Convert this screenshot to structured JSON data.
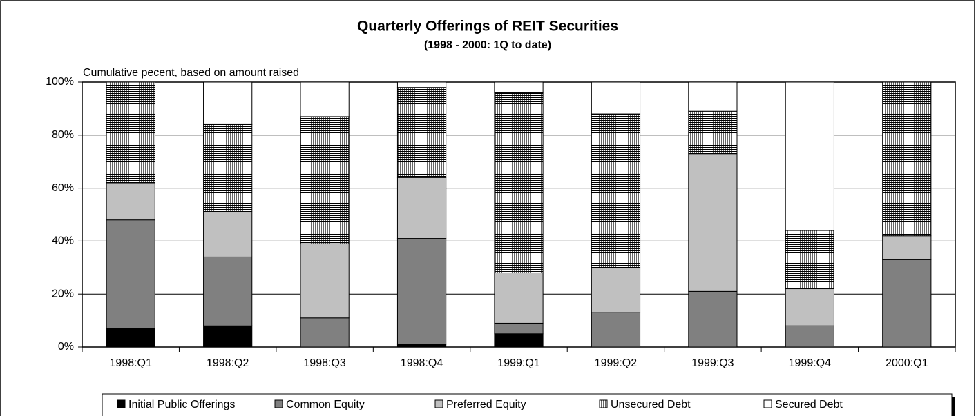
{
  "chart_data": {
    "type": "stacked_bar",
    "title": "Quarterly Offerings of REIT Securities",
    "subtitle": "(1998 - 2000: 1Q to date)",
    "y_label": "Cumulative pecent, based on amount raised",
    "categories": [
      "1998:Q1",
      "1998:Q2",
      "1998:Q3",
      "1998:Q4",
      "1999:Q1",
      "1999:Q2",
      "1999:Q3",
      "1999:Q4",
      "2000:Q1"
    ],
    "series": [
      {
        "name": "Initial Public Offerings",
        "color": "#000000",
        "values": [
          7,
          8,
          0,
          1,
          5,
          0,
          0,
          0,
          0
        ]
      },
      {
        "name": "Common Equity",
        "color": "#808080",
        "values": [
          41,
          26,
          11,
          40,
          4,
          13,
          21,
          8,
          33
        ]
      },
      {
        "name": "Preferred Equity",
        "color": "#c0c0c0",
        "values": [
          14,
          17,
          28,
          23,
          19,
          17,
          52,
          14,
          9
        ]
      },
      {
        "name": "Unsecured Debt",
        "color": "#9a9a9a",
        "pattern": "grid",
        "values": [
          38,
          33,
          48,
          34,
          68,
          58,
          16,
          22,
          58
        ]
      },
      {
        "name": "Secured Debt",
        "color": "#ffffff",
        "values": [
          0,
          16,
          13,
          2,
          4,
          12,
          11,
          56,
          0
        ]
      }
    ],
    "ylim": [
      0,
      100
    ],
    "yticks": [
      {
        "value": 0,
        "label": "0%"
      },
      {
        "value": 20,
        "label": "20%"
      },
      {
        "value": 40,
        "label": "40%"
      },
      {
        "value": 60,
        "label": "60%"
      },
      {
        "value": 80,
        "label": "80%"
      },
      {
        "value": 100,
        "label": "100%"
      }
    ],
    "grid": true,
    "legend": "bottom"
  }
}
